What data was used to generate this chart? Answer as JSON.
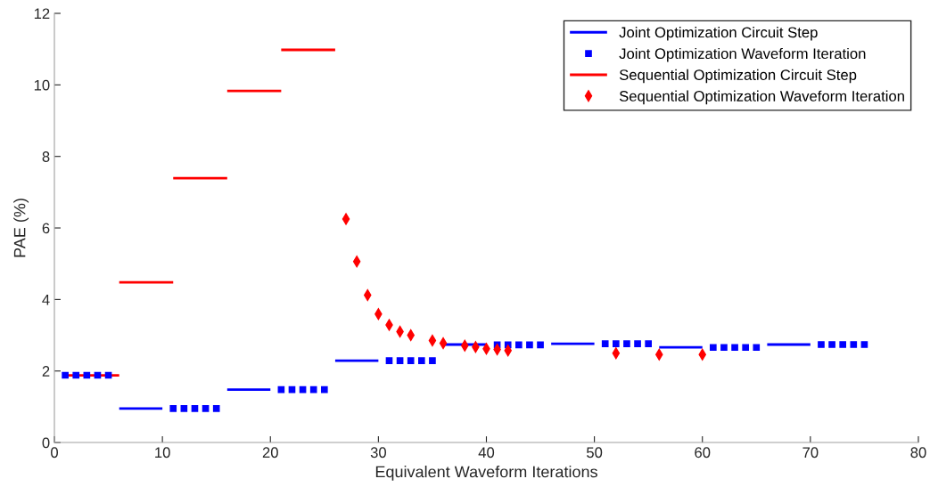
{
  "chart_data": {
    "type": "line",
    "xlabel": "Equivalent Waveform Iterations",
    "ylabel": "PAE (%)",
    "xlim": [
      0,
      80
    ],
    "ylim": [
      0,
      12
    ],
    "xticks": [
      0,
      10,
      20,
      30,
      40,
      50,
      60,
      70,
      80
    ],
    "yticks": [
      0,
      2,
      4,
      6,
      8,
      10,
      12
    ],
    "grid": false,
    "legend": "top right",
    "line_style": "solid",
    "marker": "none",
    "series": [
      {
        "name": "Joint Optimization Circuit Step",
        "color": "#0000ff",
        "x": [
          6,
          10
        ],
        "values": [
          0.95,
          0.95
        ]
      },
      {
        "color": "#0000ff",
        "x": [
          16,
          20
        ],
        "values": [
          1.48,
          1.48
        ]
      },
      {
        "color": "#0000ff",
        "x": [
          26,
          30
        ],
        "values": [
          2.29,
          2.29
        ]
      },
      {
        "color": "#0000ff",
        "x": [
          36,
          40
        ],
        "values": [
          2.74,
          2.74
        ]
      },
      {
        "color": "#0000ff",
        "x": [
          46,
          50
        ],
        "values": [
          2.76,
          2.76
        ]
      },
      {
        "color": "#0000ff",
        "x": [
          56,
          60
        ],
        "values": [
          2.66,
          2.66
        ]
      },
      {
        "color": "#0000ff",
        "x": [
          66,
          70
        ],
        "values": [
          2.74,
          2.74
        ]
      },
      {
        "name": "Joint Optimization Waveform Iteration",
        "type": "scatter",
        "marker": "square",
        "color": "#0000ff",
        "x": [
          1,
          2,
          3,
          4,
          5,
          11,
          12,
          13,
          14,
          15,
          21,
          22,
          23,
          24,
          25,
          31,
          32,
          33,
          34,
          35,
          41,
          42,
          43,
          44,
          45,
          51,
          52,
          53,
          54,
          55,
          61,
          62,
          63,
          64,
          65,
          71,
          72,
          73,
          74,
          75
        ],
        "values": [
          1.88,
          1.88,
          1.88,
          1.88,
          1.88,
          0.95,
          0.95,
          0.95,
          0.95,
          0.95,
          1.48,
          1.48,
          1.48,
          1.48,
          1.48,
          2.29,
          2.29,
          2.29,
          2.29,
          2.29,
          2.73,
          2.73,
          2.73,
          2.73,
          2.73,
          2.76,
          2.76,
          2.76,
          2.76,
          2.76,
          2.66,
          2.66,
          2.66,
          2.66,
          2.66,
          2.74,
          2.74,
          2.74,
          2.74,
          2.74
        ]
      },
      {
        "name": "Sequential Optimization Circuit Step",
        "color": "#ff0000",
        "x": [
          1,
          6
        ],
        "values": [
          1.88,
          1.88
        ]
      },
      {
        "color": "#ff0000",
        "x": [
          6,
          11
        ],
        "values": [
          4.48,
          4.48
        ]
      },
      {
        "color": "#ff0000",
        "x": [
          11,
          16
        ],
        "values": [
          7.39,
          7.39
        ]
      },
      {
        "color": "#ff0000",
        "x": [
          16,
          21
        ],
        "values": [
          9.83,
          9.83
        ]
      },
      {
        "color": "#ff0000",
        "x": [
          21,
          26
        ],
        "values": [
          10.98,
          10.98
        ]
      },
      {
        "name": "Sequential Optimization Waveform Iteration",
        "type": "scatter",
        "marker": "diamond",
        "color": "#ff0000",
        "x": [
          27,
          28,
          29,
          30,
          31,
          32,
          33,
          35,
          36,
          38,
          39,
          40,
          41,
          42,
          52,
          56,
          60
        ],
        "values": [
          6.25,
          5.06,
          4.12,
          3.59,
          3.29,
          3.1,
          3.0,
          2.85,
          2.78,
          2.71,
          2.67,
          2.62,
          2.6,
          2.57,
          2.5,
          2.46,
          2.46
        ]
      }
    ]
  }
}
